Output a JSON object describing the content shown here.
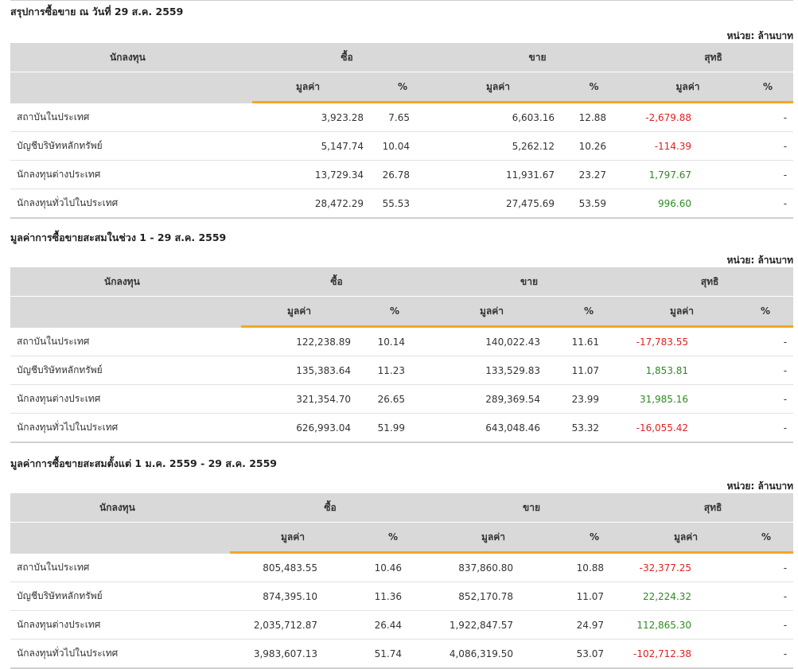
{
  "header": {
    "col_investor": "นักลงทุน",
    "col_buy": "ซื้อ",
    "col_sell": "ขาย",
    "col_net": "สุทธิ",
    "col_value": "มูลค่า",
    "col_pct": "%"
  },
  "sections": [
    {
      "title": "สรุปการซื้อขาย ณ วันที่ 29 ส.ค. 2559",
      "unit": "หน่วย: ล้านบาท",
      "rows": [
        {
          "name": "สถาบันในประเทศ",
          "buy": "3,923.28",
          "buy_pct": "7.65",
          "sell": "6,603.16",
          "sell_pct": "12.88",
          "net": "-2,679.88",
          "net_pct": "-",
          "net_sign": "neg"
        },
        {
          "name": "บัญชีบริษัทหลักทรัพย์",
          "buy": "5,147.74",
          "buy_pct": "10.04",
          "sell": "5,262.12",
          "sell_pct": "10.26",
          "net": "-114.39",
          "net_pct": "-",
          "net_sign": "neg"
        },
        {
          "name": "นักลงทุนต่างประเทศ",
          "buy": "13,729.34",
          "buy_pct": "26.78",
          "sell": "11,931.67",
          "sell_pct": "23.27",
          "net": "1,797.67",
          "net_pct": "-",
          "net_sign": "pos"
        },
        {
          "name": "นักลงทุนทั่วไปในประเทศ",
          "buy": "28,472.29",
          "buy_pct": "55.53",
          "sell": "27,475.69",
          "sell_pct": "53.59",
          "net": "996.60",
          "net_pct": "-",
          "net_sign": "pos"
        }
      ]
    },
    {
      "title": "มูลค่าการซื้อขายสะสมในช่วง 1 - 29 ส.ค. 2559",
      "unit": "หน่วย: ล้านบาท",
      "rows": [
        {
          "name": "สถาบันในประเทศ",
          "buy": "122,238.89",
          "buy_pct": "10.14",
          "sell": "140,022.43",
          "sell_pct": "11.61",
          "net": "-17,783.55",
          "net_pct": "-",
          "net_sign": "neg"
        },
        {
          "name": "บัญชีบริษัทหลักทรัพย์",
          "buy": "135,383.64",
          "buy_pct": "11.23",
          "sell": "133,529.83",
          "sell_pct": "11.07",
          "net": "1,853.81",
          "net_pct": "-",
          "net_sign": "pos"
        },
        {
          "name": "นักลงทุนต่างประเทศ",
          "buy": "321,354.70",
          "buy_pct": "26.65",
          "sell": "289,369.54",
          "sell_pct": "23.99",
          "net": "31,985.16",
          "net_pct": "-",
          "net_sign": "pos"
        },
        {
          "name": "นักลงทุนทั่วไปในประเทศ",
          "buy": "626,993.04",
          "buy_pct": "51.99",
          "sell": "643,048.46",
          "sell_pct": "53.32",
          "net": "-16,055.42",
          "net_pct": "-",
          "net_sign": "neg"
        }
      ]
    },
    {
      "title": "มูลค่าการซื้อขายสะสมตั้งแต่ 1 ม.ค. 2559 - 29 ส.ค. 2559",
      "unit": "หน่วย: ล้านบาท",
      "rows": [
        {
          "name": "สถาบันในประเทศ",
          "buy": "805,483.55",
          "buy_pct": "10.46",
          "sell": "837,860.80",
          "sell_pct": "10.88",
          "net": "-32,377.25",
          "net_pct": "-",
          "net_sign": "neg"
        },
        {
          "name": "บัญชีบริษัทหลักทรัพย์",
          "buy": "874,395.10",
          "buy_pct": "11.36",
          "sell": "852,170.78",
          "sell_pct": "11.07",
          "net": "22,224.32",
          "net_pct": "-",
          "net_sign": "pos"
        },
        {
          "name": "นักลงทุนต่างประเทศ",
          "buy": "2,035,712.87",
          "buy_pct": "26.44",
          "sell": "1,922,847.57",
          "sell_pct": "24.97",
          "net": "112,865.30",
          "net_pct": "-",
          "net_sign": "pos"
        },
        {
          "name": "นักลงทุนทั่วไปในประเทศ",
          "buy": "3,983,607.13",
          "buy_pct": "51.74",
          "sell": "4,086,319.50",
          "sell_pct": "53.07",
          "net": "-102,712.38",
          "net_pct": "-",
          "net_sign": "neg"
        }
      ]
    }
  ],
  "colors": {
    "negative": "#e02020",
    "positive": "#2e8b22",
    "accent": "#f5a623",
    "header_bg": "#d9d9d9"
  }
}
